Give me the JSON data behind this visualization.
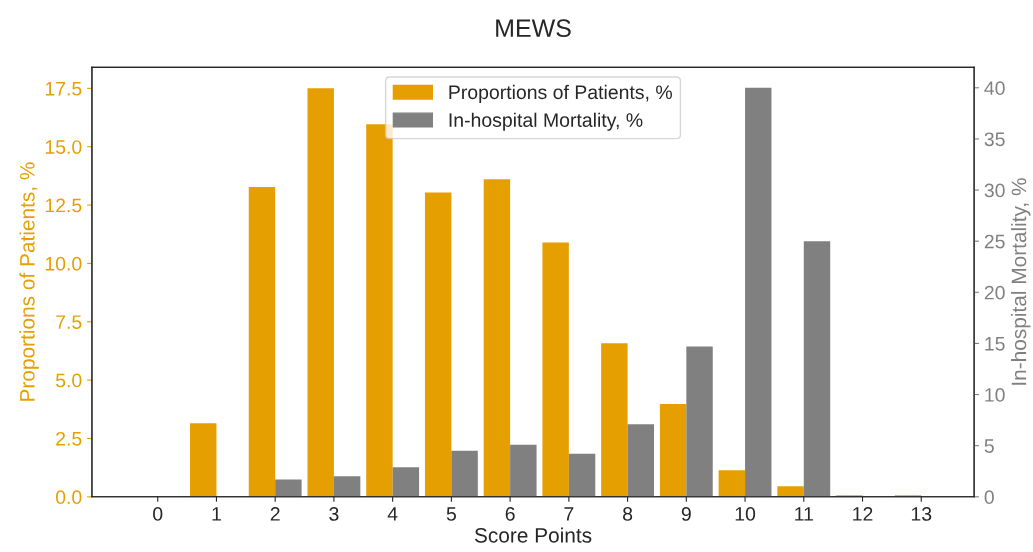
{
  "chart_data": {
    "type": "bar",
    "title": "MEWS",
    "xlabel": "Score Points",
    "ylabel": "Proportions of Patients, %",
    "y2label": "In-hospital Mortality, %",
    "categories": [
      "0",
      "1",
      "2",
      "3",
      "4",
      "5",
      "6",
      "7",
      "8",
      "9",
      "10",
      "11",
      "12",
      "13"
    ],
    "series": [
      {
        "name": "Proportions of Patients, %",
        "color": "#e69f00",
        "values": [
          0,
          3.15,
          13.27,
          17.5,
          15.96,
          13.04,
          13.61,
          10.9,
          6.58,
          3.98,
          1.14,
          0.45,
          0.07,
          0.07
        ]
      },
      {
        "name": "In-hospital Mortality, %",
        "color": "#808080",
        "axis": "y2",
        "values": [
          0,
          0,
          1.7,
          2.0,
          2.9,
          4.5,
          5.1,
          4.2,
          7.1,
          14.7,
          40,
          25.0,
          0,
          0
        ]
      }
    ],
    "ylim": [
      0,
      18.4
    ],
    "yticks": [
      {
        "value": 0,
        "label": "0.0"
      },
      2.5,
      {
        "value": 5,
        "label": "5.0"
      },
      7.5,
      {
        "value": 10,
        "label": "10.0"
      },
      12.5,
      {
        "value": 15,
        "label": "15.0"
      },
      17.5
    ],
    "y2lim": [
      0,
      42
    ],
    "y2ticks": [
      0,
      5,
      10,
      15,
      20,
      25,
      30,
      35,
      40
    ],
    "grid": false,
    "legend": "top"
  }
}
